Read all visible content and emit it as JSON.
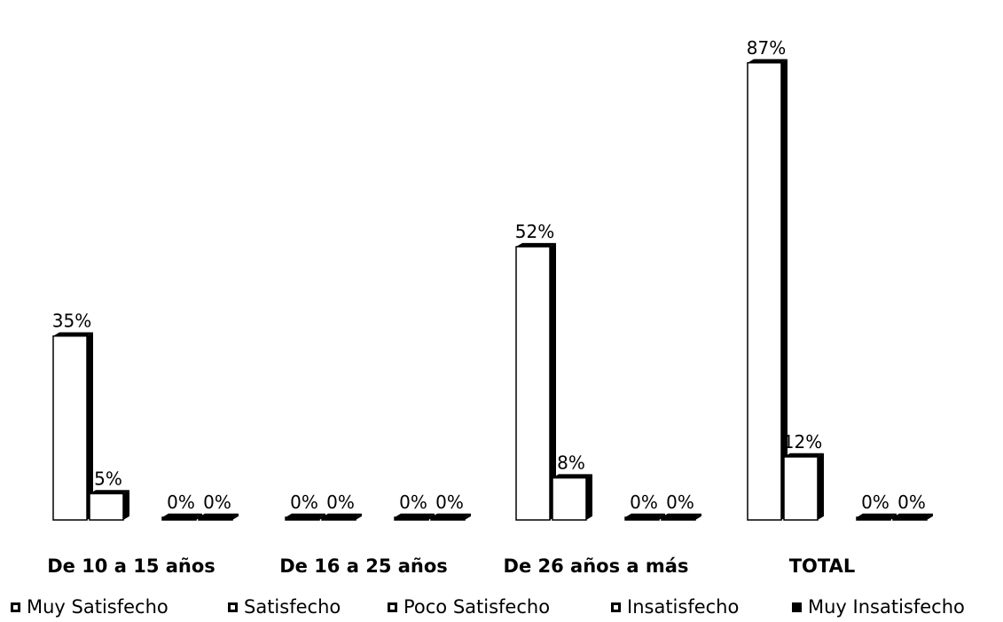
{
  "chart_data": {
    "type": "bar",
    "categories": [
      "De 10 a 15 años",
      "De 16 a 25 años",
      "De 26 años a más",
      "TOTAL"
    ],
    "series": [
      {
        "name": "Muy Satisfecho",
        "values": [
          35,
          0,
          52,
          87
        ]
      },
      {
        "name": "Satisfecho",
        "values": [
          5,
          0,
          8,
          12
        ]
      },
      {
        "name": "Poco Satisfecho",
        "values": [
          null,
          null,
          null,
          null
        ]
      },
      {
        "name": "Insatisfecho",
        "values": [
          0,
          0,
          0,
          0
        ]
      },
      {
        "name": "Muy Insatisfecho",
        "values": [
          0,
          0,
          0,
          0
        ]
      }
    ],
    "data_labels": [
      [
        "35%",
        "0%",
        "52%",
        "87%"
      ],
      [
        "5%",
        "0%",
        "8%",
        "12%"
      ],
      [
        "",
        "",
        "",
        ""
      ],
      [
        "0%",
        "0%",
        "0%",
        "0%"
      ],
      [
        "0%",
        "0%",
        "0%",
        "0%"
      ]
    ],
    "unit": "%",
    "ylim": [
      0,
      90
    ],
    "grid": false,
    "legend_position": "bottom",
    "colors": {
      "fill": "#ffffff",
      "edge": "#000000"
    }
  }
}
